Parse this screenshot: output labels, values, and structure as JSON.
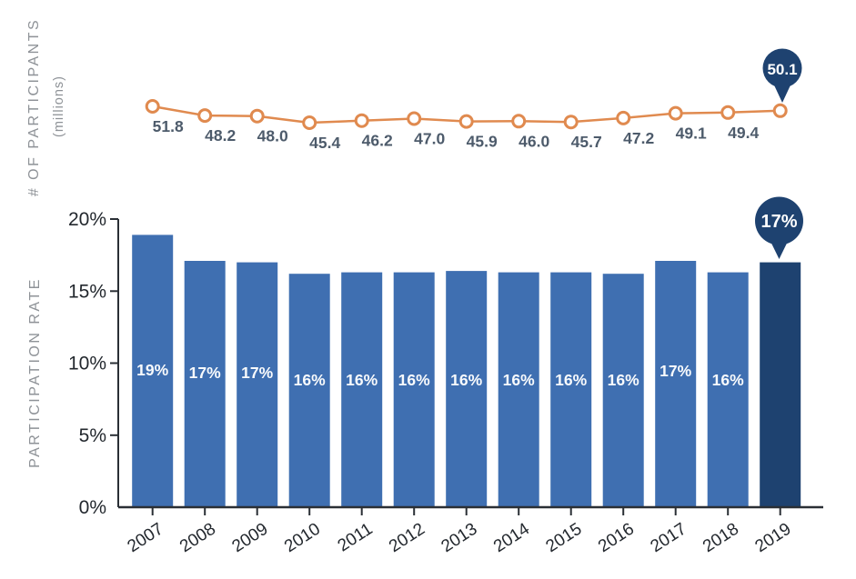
{
  "page": {
    "background": "#FFFFFF"
  },
  "chart_data": [
    {
      "type": "line",
      "title": "# OF PARTICIPANTS",
      "unit": "(millions)",
      "x": [
        "2007",
        "2008",
        "2009",
        "2010",
        "2011",
        "2012",
        "2013",
        "2014",
        "2015",
        "2016",
        "2017",
        "2018",
        "2019"
      ],
      "values": [
        51.8,
        48.2,
        48.0,
        45.4,
        46.2,
        47.0,
        45.9,
        46.0,
        45.7,
        47.2,
        49.1,
        49.4,
        50.1
      ],
      "point_labels": [
        "51.8",
        "48.2",
        "48.0",
        "45.4",
        "46.2",
        "47.0",
        "45.9",
        "46.0",
        "45.7",
        "47.2",
        "49.1",
        "49.4"
      ],
      "callout_label": "50.1",
      "line_color": "#E08A4F",
      "marker_fill": "#FFFFFF",
      "point_label_color": "#4D5B6B",
      "callout_color": "#1E4270",
      "callout_text_color": "#FFFFFF",
      "axis_title_color": "#8E9297",
      "grid": false,
      "legend": "none",
      "axes_visible": false
    },
    {
      "type": "bar",
      "title": "PARTICIPATION RATE",
      "categories": [
        "2007",
        "2008",
        "2009",
        "2010",
        "2011",
        "2012",
        "2013",
        "2014",
        "2015",
        "2016",
        "2017",
        "2018",
        "2019"
      ],
      "values": [
        18.9,
        17.1,
        17.0,
        16.2,
        16.3,
        16.3,
        16.4,
        16.3,
        16.3,
        16.2,
        17.1,
        16.3,
        17.0
      ],
      "bar_labels": [
        "19%",
        "17%",
        "17%",
        "16%",
        "16%",
        "16%",
        "16%",
        "16%",
        "16%",
        "16%",
        "17%",
        "16%",
        ""
      ],
      "callout_label": "17%",
      "highlight_index": 12,
      "ylim": [
        0,
        20
      ],
      "y_tick_values": [
        20,
        15,
        10,
        5,
        0
      ],
      "y_tick_labels": [
        "20%",
        "15%",
        "10%",
        "5%",
        "0%"
      ],
      "bar_color": "#3F6FB1",
      "highlight_bar_color": "#1E4270",
      "bar_label_color": "#F8FAFC",
      "callout_color": "#1E4270",
      "callout_text_color": "#FFFFFF",
      "axis_color": "#2A2F35",
      "tick_label_color": "#23282E",
      "axis_title_color": "#8E9297",
      "grid": false,
      "legend": "none"
    }
  ]
}
